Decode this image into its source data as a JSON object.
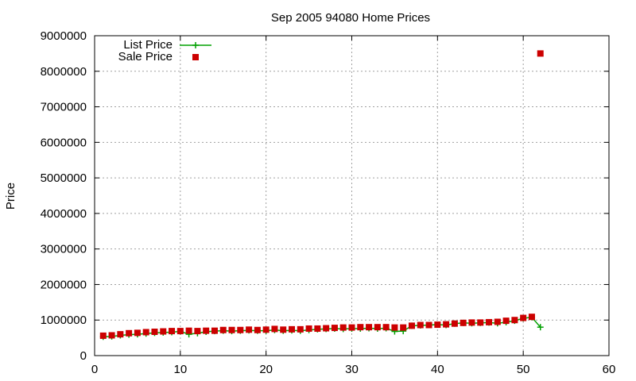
{
  "chart_data": {
    "type": "scatter",
    "title": "Sep 2005 94080 Home Prices",
    "xlabel": "",
    "ylabel": "Price",
    "xlim": [
      0,
      60
    ],
    "ylim": [
      0,
      9000000
    ],
    "xticks": [
      0,
      10,
      20,
      30,
      40,
      50,
      60
    ],
    "yticks": [
      0,
      1000000,
      2000000,
      3000000,
      4000000,
      5000000,
      6000000,
      7000000,
      8000000,
      9000000
    ],
    "grid": true,
    "legend": "top-left",
    "series": [
      {
        "name": "List Price",
        "style": "line+points",
        "color": "#00a000",
        "x": [
          1,
          2,
          3,
          4,
          5,
          6,
          7,
          8,
          9,
          10,
          11,
          12,
          13,
          14,
          15,
          16,
          17,
          18,
          19,
          20,
          21,
          22,
          23,
          24,
          25,
          26,
          27,
          28,
          29,
          30,
          31,
          32,
          33,
          34,
          35,
          36,
          37,
          38,
          39,
          40,
          41,
          42,
          43,
          44,
          45,
          46,
          47,
          48,
          49,
          50,
          51,
          52
        ],
        "y": [
          530000,
          540000,
          570000,
          590000,
          600000,
          620000,
          640000,
          650000,
          660000,
          680000,
          600000,
          630000,
          670000,
          690000,
          700000,
          690000,
          700000,
          710000,
          700000,
          700000,
          720000,
          700000,
          710000,
          700000,
          720000,
          740000,
          750000,
          760000,
          750000,
          760000,
          760000,
          770000,
          760000,
          770000,
          680000,
          690000,
          840000,
          850000,
          860000,
          870000,
          860000,
          900000,
          920000,
          910000,
          920000,
          930000,
          910000,
          940000,
          980000,
          1050000,
          1080000,
          800000
        ]
      },
      {
        "name": "Sale Price",
        "style": "points",
        "color": "#cc0000",
        "x": [
          1,
          2,
          3,
          4,
          5,
          6,
          7,
          8,
          9,
          10,
          11,
          12,
          13,
          14,
          15,
          16,
          17,
          18,
          19,
          20,
          21,
          22,
          23,
          24,
          25,
          26,
          27,
          28,
          29,
          30,
          31,
          32,
          33,
          34,
          35,
          36,
          37,
          38,
          39,
          40,
          41,
          42,
          43,
          44,
          45,
          46,
          47,
          48,
          49,
          50,
          51,
          52
        ],
        "y": [
          560000,
          570000,
          600000,
          630000,
          640000,
          660000,
          670000,
          680000,
          690000,
          690000,
          700000,
          690000,
          700000,
          700000,
          720000,
          720000,
          720000,
          730000,
          720000,
          730000,
          750000,
          730000,
          740000,
          740000,
          760000,
          760000,
          770000,
          780000,
          790000,
          790000,
          800000,
          800000,
          800000,
          800000,
          790000,
          790000,
          840000,
          860000,
          860000,
          870000,
          880000,
          900000,
          920000,
          930000,
          930000,
          940000,
          950000,
          980000,
          1000000,
          1060000,
          1090000,
          8500000
        ]
      }
    ]
  }
}
